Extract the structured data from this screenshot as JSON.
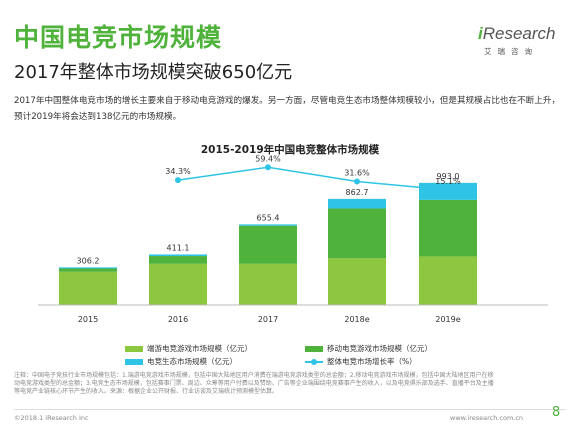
{
  "header": {
    "title": "中国电竞市场规模",
    "subtitle": "2017年整体市场规模突破650亿元"
  },
  "logo": {
    "word_prefix": "i",
    "word_rest": "Research",
    "cn": "艾瑞咨询",
    "brand_color": "#4fb23a"
  },
  "description": "2017年中国整体电竞市场的增长主要来自于移动电竞游戏的爆发。另一方面，尽管电竞生态市场整体规模较小，但是其规模占比也在不断上升，预计2019年将会达到138亿元的市场规模。",
  "chart_data": {
    "type": "bar",
    "title": "2015-2019年中国电竞整体市场规模",
    "categories": [
      "2015",
      "2016",
      "2017",
      "2018e",
      "2019e"
    ],
    "series": [
      {
        "name": "端游电竞游戏市场规模（亿元）",
        "values": [
          270.0,
          335.0,
          335.0,
          380.0,
          395.0
        ],
        "color": "#8dc63f"
      },
      {
        "name": "移动电竞游戏市场规模（亿元）",
        "values": [
          27.0,
          63.0,
          310.0,
          405.0,
          460.0
        ],
        "color": "#4fb23a"
      },
      {
        "name": "电竞生态市场规模（亿元）",
        "values": [
          9.2,
          13.1,
          10.4,
          77.7,
          138.0
        ],
        "color": "#2ec4e6"
      }
    ],
    "totals": [
      "306.2",
      "411.1",
      "655.4",
      "862.7",
      "993.0"
    ],
    "growth": {
      "name": "整体电竞市场增长率（%）",
      "values": [
        null,
        34.3,
        59.4,
        31.6,
        15.1
      ],
      "labels": [
        "",
        "34.3%",
        "59.4%",
        "31.6%",
        "15.1%"
      ],
      "color": "#2ec4e6"
    },
    "ylim": [
      0,
      1000
    ],
    "legend_position": "bottom",
    "grid": false
  },
  "footnote": "注释：中国电子竞技行业市场规模包括：1.端游电竞游戏市场规模，包括中国大陆地区用户消费在端游电竞游戏类型的总金额；2.移动电竞游戏市场规模，包括中国大陆地区用户在移动电竞游戏类型的总金额；3.电竞生态市场规模，包括赛事门票、周边、众筹等用户付费以及赞助、广告等企业端围绕电竞赛事产生的收入，以及电竞俱乐部及选手、直播平台及主播等电竞产业链核心环节产生的收入。来源：根据企业公开财报、行业访谈及艾瑞统计预测模型估算。",
  "footer": {
    "copyright": "©2018.1 iResearch Inc",
    "website": "www.iresearch.com.cn",
    "page": "8"
  }
}
